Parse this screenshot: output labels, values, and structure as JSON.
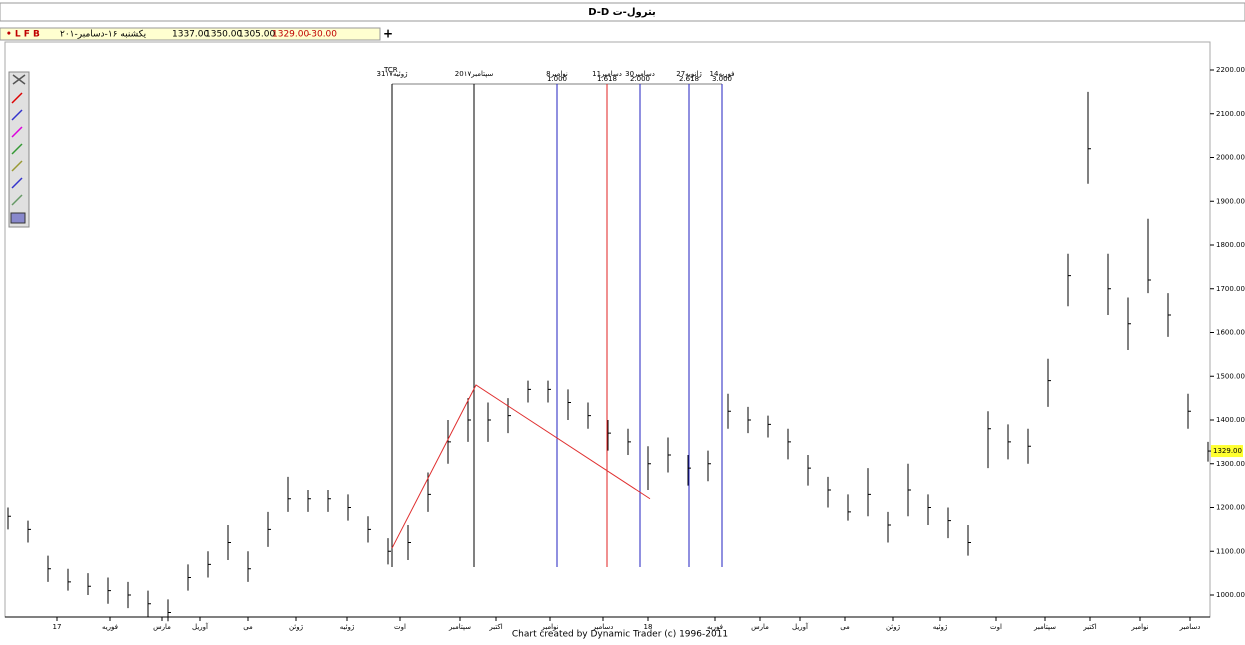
{
  "header": {
    "title": "D-D بترول-ت",
    "flags": "• L F B",
    "date": "یکشنبه ۱۶-دسامبر-۲۰۱",
    "open": "1337.00",
    "high": "1350.00",
    "low": "1305.00",
    "close": "1329.00",
    "change": "-30.00",
    "plus": "+"
  },
  "footer": "Chart created by Dynamic Trader  (c) 1996-2011",
  "chart_data": {
    "type": "ohlc",
    "color": "#000000",
    "high": [
      1200,
      1170,
      1090,
      1060,
      1050,
      1040,
      1030,
      1010,
      990,
      1070,
      1100,
      1160,
      1100,
      1190,
      1270,
      1240,
      1240,
      1230,
      1180,
      1130,
      1160,
      1280,
      1400,
      1450,
      1440,
      1450,
      1490,
      1490,
      1470,
      1440,
      1400,
      1380,
      1340,
      1360,
      1320,
      1330,
      1460,
      1430,
      1410,
      1380,
      1320,
      1270,
      1230,
      1290,
      1190,
      1300,
      1230,
      1200,
      1160,
      1420,
      1390,
      1380,
      1540,
      1780,
      2150,
      1780,
      1680,
      1860,
      1690,
      1460,
      1350
    ],
    "low": [
      1150,
      1120,
      1030,
      1010,
      1000,
      980,
      970,
      950,
      940,
      1010,
      1040,
      1080,
      1030,
      1110,
      1190,
      1190,
      1190,
      1170,
      1120,
      1070,
      1080,
      1190,
      1300,
      1350,
      1350,
      1370,
      1440,
      1440,
      1400,
      1380,
      1330,
      1320,
      1240,
      1280,
      1250,
      1260,
      1380,
      1370,
      1360,
      1310,
      1250,
      1200,
      1170,
      1180,
      1120,
      1180,
      1160,
      1130,
      1090,
      1290,
      1310,
      1300,
      1430,
      1660,
      1940,
      1640,
      1560,
      1690,
      1590,
      1380,
      1305
    ],
    "close": [
      1180,
      1150,
      1060,
      1030,
      1020,
      1010,
      1000,
      980,
      960,
      1040,
      1070,
      1120,
      1060,
      1150,
      1220,
      1220,
      1220,
      1200,
      1150,
      1100,
      1120,
      1230,
      1350,
      1400,
      1400,
      1410,
      1470,
      1470,
      1440,
      1410,
      1370,
      1350,
      1300,
      1320,
      1290,
      1300,
      1420,
      1400,
      1390,
      1350,
      1290,
      1240,
      1190,
      1230,
      1160,
      1240,
      1200,
      1170,
      1120,
      1380,
      1350,
      1340,
      1490,
      1730,
      2020,
      1700,
      1620,
      1720,
      1640,
      1420,
      1329
    ],
    "ylim": [
      1000,
      2200
    ],
    "yticks": [
      {
        "value": 1000,
        "label": "1000.00"
      },
      {
        "value": 1100,
        "label": "1100.00"
      },
      {
        "value": 1200,
        "label": "1200.00"
      },
      {
        "value": 1300,
        "label": "1300.00"
      },
      {
        "value": 1400,
        "label": "1400.00"
      },
      {
        "value": 1500,
        "label": "1500.00"
      },
      {
        "value": 1600,
        "label": "1600.00"
      },
      {
        "value": 1700,
        "label": "1700.00"
      },
      {
        "value": 1800,
        "label": "1800.00"
      },
      {
        "value": 1900,
        "label": "1900.00"
      },
      {
        "value": 2000,
        "label": "2000.00"
      },
      {
        "value": 2100,
        "label": "2100.00"
      },
      {
        "value": 2200,
        "label": "2200.00"
      }
    ],
    "xticks": [
      {
        "value": 2.45,
        "label": "17"
      },
      {
        "value": 5.1,
        "label": "فوریه"
      },
      {
        "value": 7.7,
        "label": "مارس"
      },
      {
        "value": 9.6,
        "label": "آوریل"
      },
      {
        "value": 12,
        "label": "می"
      },
      {
        "value": 14.4,
        "label": "ژوئن"
      },
      {
        "value": 16.95,
        "label": "ژوئیه"
      },
      {
        "value": 19.6,
        "label": "اوت"
      },
      {
        "value": 22.6,
        "label": "سپتامبر"
      },
      {
        "value": 24.4,
        "label": "اکتبر"
      },
      {
        "value": 27.1,
        "label": "نوامبر"
      },
      {
        "value": 29.75,
        "label": "دسامبر"
      },
      {
        "value": 32,
        "label": "18"
      },
      {
        "value": 35.35,
        "label": "فوریه"
      },
      {
        "value": 37.6,
        "label": "مارس"
      },
      {
        "value": 39.6,
        "label": "آوریل"
      },
      {
        "value": 41.85,
        "label": "می"
      },
      {
        "value": 44.25,
        "label": "ژوئن"
      },
      {
        "value": 46.6,
        "label": "ژوئیه"
      },
      {
        "value": 49.4,
        "label": "اوت"
      },
      {
        "value": 51.85,
        "label": "سپتامبر"
      },
      {
        "value": 54.1,
        "label": "اکتبر"
      },
      {
        "value": 56.6,
        "label": "نوامبر"
      },
      {
        "value": 59.1,
        "label": "دسامبر"
      }
    ],
    "last_price": {
      "value": 1329,
      "label": "1329.00"
    },
    "time_lines": [
      {
        "at": 19.2,
        "color": "#000000",
        "label": "TCR",
        "date": "31ژوئیه۱۷"
      },
      {
        "at": 23.3,
        "color": "#000000",
        "date": "20سپتامبر۱۷"
      },
      {
        "at": 27.45,
        "color": "#2020c0",
        "date": "8نوامبر",
        "ratio": "1.000"
      },
      {
        "at": 29.95,
        "color": "#e02020",
        "date": "11دسامبر",
        "ratio": "1.618"
      },
      {
        "at": 31.6,
        "color": "#2020c0",
        "date": "30دسامبر",
        "ratio": "2.000"
      },
      {
        "at": 34.05,
        "color": "#2020c0",
        "date": "27ژانویه",
        "ratio": "2.618"
      },
      {
        "at": 35.7,
        "color": "#2020c0",
        "date": "14فوریه",
        "ratio": "3.000"
      }
    ],
    "trendline": {
      "color": "#e03030",
      "x": [
        19.2,
        23.4,
        32.1
      ],
      "y": [
        1107,
        1480,
        1220
      ]
    }
  }
}
